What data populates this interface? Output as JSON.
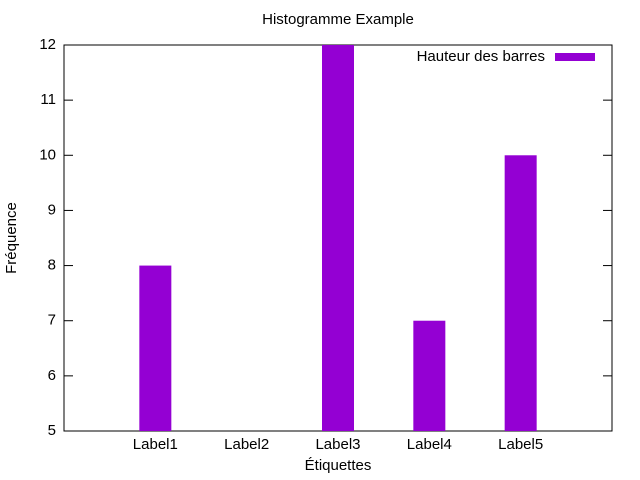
{
  "chart_data": {
    "type": "bar",
    "title": "Histogramme Example",
    "x_label": "Étiquettes",
    "y_label": "Fréquence",
    "categories": [
      "Label1",
      "Label2",
      "Label3",
      "Label4",
      "Label5"
    ],
    "series": [
      {
        "name": "Hauteur des barres",
        "color": "#9400d3",
        "values": [
          8,
          5,
          12,
          7,
          10
        ]
      }
    ],
    "ylim": [
      5,
      12
    ],
    "yticks": [
      5,
      6,
      7,
      8,
      9,
      10,
      11,
      12
    ],
    "legend": "top-right"
  }
}
